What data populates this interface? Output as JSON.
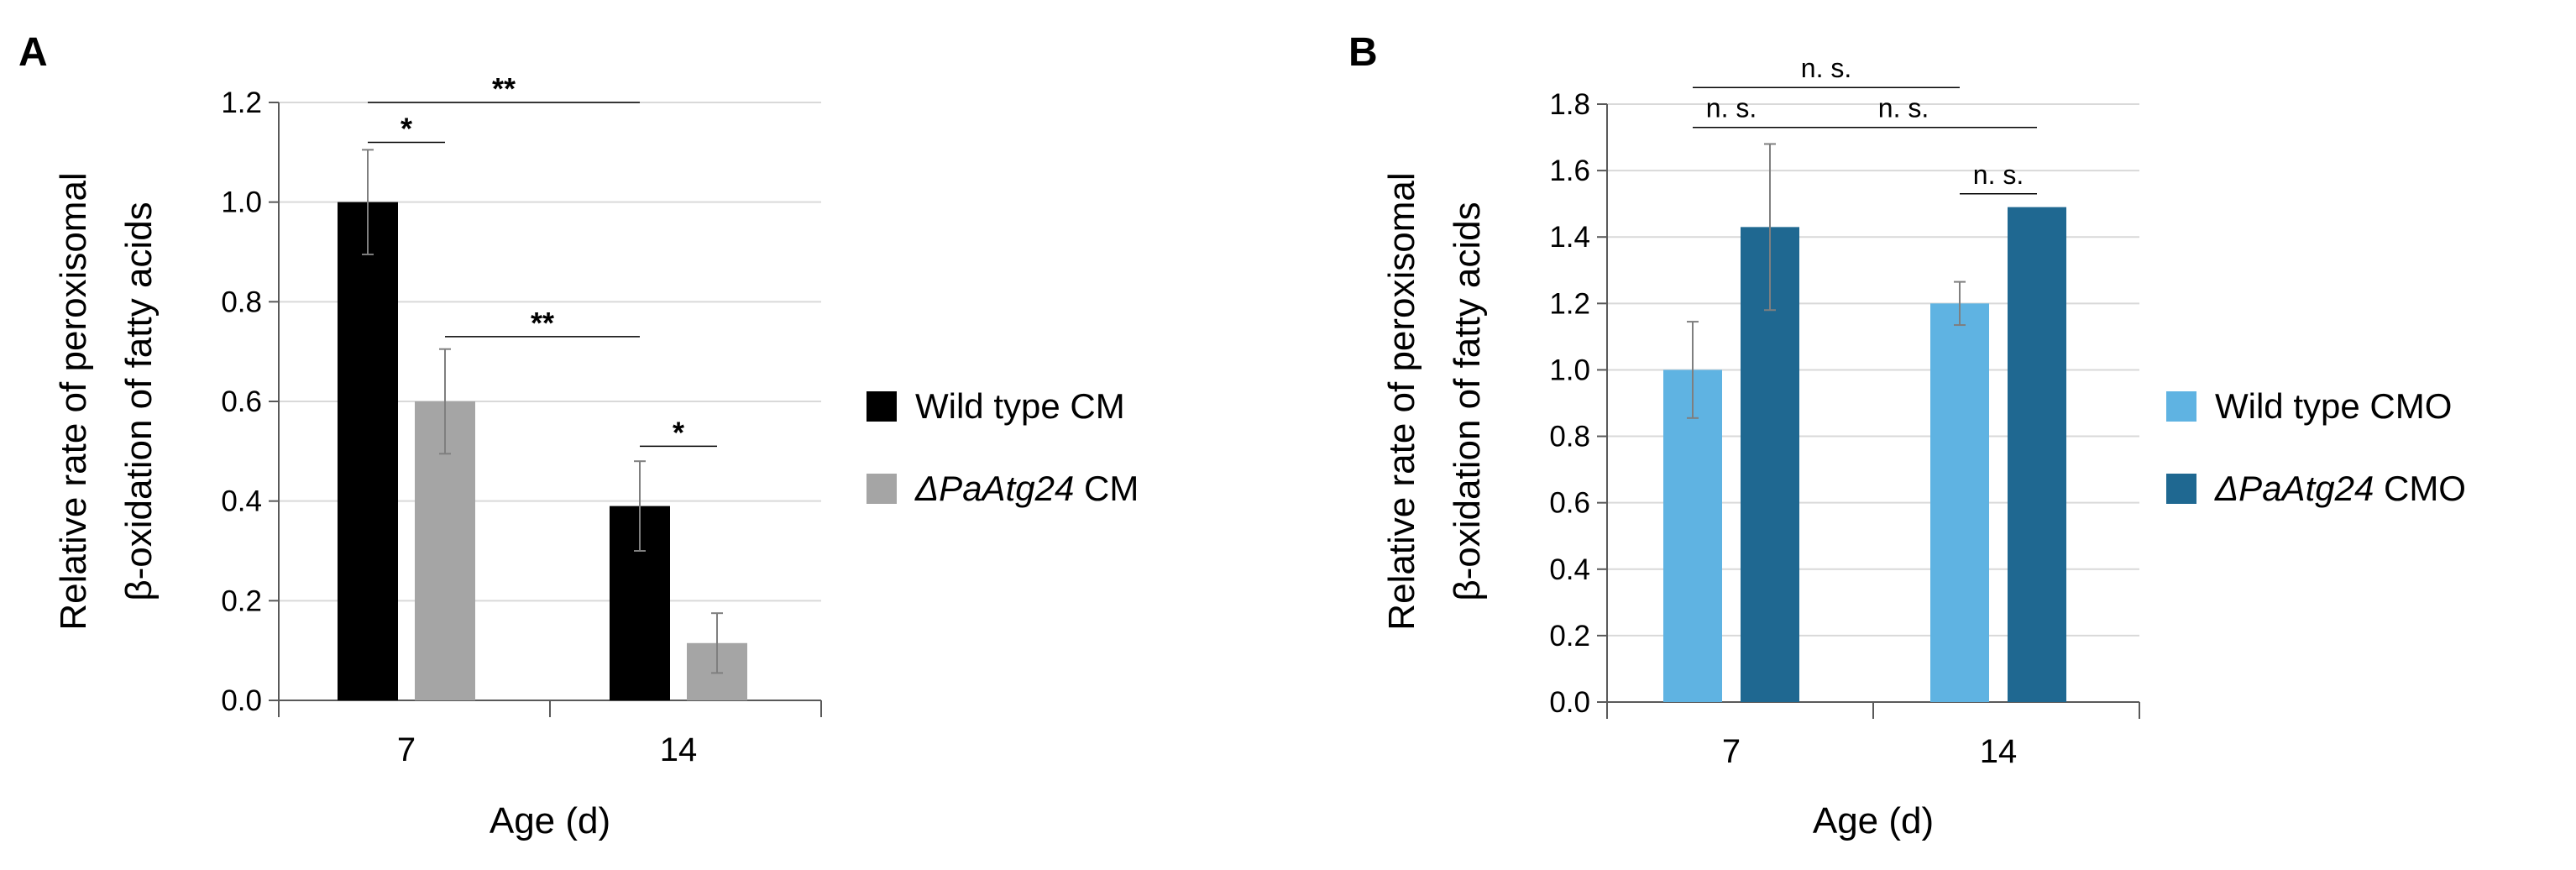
{
  "chart_data": [
    {
      "panel": "A",
      "type": "bar",
      "categories": [
        "7",
        "14"
      ],
      "xlabel": "Age (d)",
      "ylabel_lines": [
        "Relative rate of peroxisomal",
        "β-oxidation of fatty acids"
      ],
      "ylim": [
        0,
        1.2
      ],
      "yticks": [
        "0.0",
        "0.2",
        "0.4",
        "0.6",
        "0.8",
        "1.0",
        "1.2"
      ],
      "grid": true,
      "legend_position": "right",
      "series": [
        {
          "name": "Wild type CM",
          "name_italic": "",
          "name_rest": "Wild type CM",
          "color": "#000000",
          "values": [
            1.0,
            0.39
          ],
          "errors": [
            0.105,
            0.09
          ]
        },
        {
          "name": "ΔPaAtg24 CM",
          "name_italic": "ΔPaAtg24",
          "name_rest": " CM",
          "color": "#a5a5a5",
          "values": [
            0.6,
            0.115
          ],
          "errors": [
            0.105,
            0.06
          ]
        }
      ],
      "annotations": [
        {
          "label": "*",
          "from": [
            0,
            0
          ],
          "to": [
            0,
            1
          ],
          "level": 1.12
        },
        {
          "label": "**",
          "from": [
            0,
            0
          ],
          "to": [
            1,
            0
          ],
          "level": 1.2
        },
        {
          "label": "**",
          "from": [
            0,
            1
          ],
          "to": [
            1,
            0
          ],
          "level": 0.73
        },
        {
          "label": "*",
          "from": [
            1,
            0
          ],
          "to": [
            1,
            1
          ],
          "level": 0.51
        }
      ]
    },
    {
      "panel": "B",
      "type": "bar",
      "categories": [
        "7",
        "14"
      ],
      "xlabel": "Age (d)",
      "ylabel_lines": [
        "Relative rate of peroxisomal",
        "β-oxidation of fatty acids"
      ],
      "ylim": [
        0,
        1.8
      ],
      "yticks": [
        "0.0",
        "0.2",
        "0.4",
        "0.6",
        "0.8",
        "1.0",
        "1.2",
        "1.4",
        "1.6",
        "1.8"
      ],
      "grid": true,
      "legend_position": "right",
      "series": [
        {
          "name": "Wild type CMO",
          "name_italic": "",
          "name_rest": "Wild type CMO",
          "color": "#5fb3e2",
          "values": [
            1.0,
            1.2
          ],
          "errors": [
            0.145,
            0.065
          ]
        },
        {
          "name": "ΔPaAtg24 CMO",
          "name_italic": "ΔPaAtg24",
          "name_rest": " CMO",
          "color": "#1f6891",
          "values": [
            1.43,
            1.49
          ],
          "errors": [
            0.25,
            0.0
          ]
        }
      ],
      "annotations": [
        {
          "label": "n. s.",
          "from": [
            0,
            0
          ],
          "to": [
            0,
            1
          ],
          "level": 1.73
        },
        {
          "label": "n. s.",
          "from": [
            0,
            0
          ],
          "to": [
            1,
            0
          ],
          "level": 1.85
        },
        {
          "label": "n. s.",
          "from": [
            0,
            1
          ],
          "to": [
            1,
            1
          ],
          "level": 1.73
        },
        {
          "label": "n. s.",
          "from": [
            1,
            0
          ],
          "to": [
            1,
            1
          ],
          "level": 1.53
        }
      ]
    }
  ]
}
